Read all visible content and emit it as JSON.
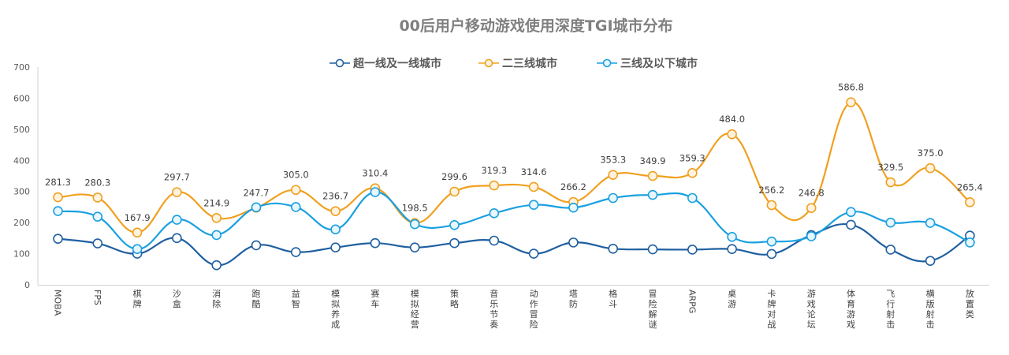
{
  "chart_data": {
    "type": "line",
    "title": "00后用户移动游戏使用深度TGI城市分布",
    "categories": [
      "MOBA",
      "FPS",
      "棋牌",
      "沙盒",
      "消除",
      "跑酷",
      "益智",
      "模拟养成",
      "赛车",
      "模拟经营",
      "策略",
      "音乐节奏",
      "动作冒险",
      "塔防",
      "格斗",
      "冒险解谜",
      "ARPG",
      "桌游",
      "卡牌对战",
      "游戏论坛",
      "体育游戏",
      "飞行射击",
      "横版射击",
      "放置类"
    ],
    "ylim": [
      0,
      700
    ],
    "yticks": [
      0,
      100,
      200,
      300,
      400,
      500,
      600,
      700
    ],
    "grid": false,
    "legend_position": "top",
    "series": [
      {
        "name": "超一线及一线城市",
        "color": "#1F5FA0",
        "fill": "#ffffff",
        "values": [
          148,
          133,
          100,
          150,
          63,
          127,
          105,
          120,
          134,
          120,
          134,
          142,
          100,
          136,
          116,
          114,
          113,
          115,
          99,
          160,
          193,
          113,
          77,
          158
        ]
      },
      {
        "name": "二三线城市",
        "color": "#F0A020",
        "fill": "#FFF3E0",
        "show_labels": true,
        "values": [
          281.3,
          280.3,
          167.9,
          297.7,
          214.9,
          247.7,
          305.0,
          236.7,
          310.4,
          198.5,
          299.6,
          319.3,
          314.6,
          266.2,
          353.3,
          349.9,
          359.3,
          484.0,
          256.2,
          246.8,
          586.8,
          329.5,
          375.0,
          265.4
        ]
      },
      {
        "name": "三线及以下城市",
        "color": "#1AA0E0",
        "fill": "#E8F6FD",
        "values": [
          237,
          219,
          115,
          209,
          160,
          249,
          250,
          178,
          298,
          195,
          192,
          230,
          257,
          248,
          279,
          289,
          279,
          154,
          139,
          156,
          234,
          200,
          199,
          136
        ]
      }
    ],
    "data_labels": [
      "281.3",
      "280.3",
      "167.9",
      "297.7",
      "214.9",
      "247.7",
      "305.0",
      "236.7",
      "310.4",
      "198.5",
      "299.6",
      "319.3",
      "314.6",
      "266.2",
      "353.3",
      "349.9",
      "359.3",
      "484.0",
      "256.2",
      "246.8",
      "586.8",
      "329.5",
      "375.0",
      "265.4"
    ]
  }
}
